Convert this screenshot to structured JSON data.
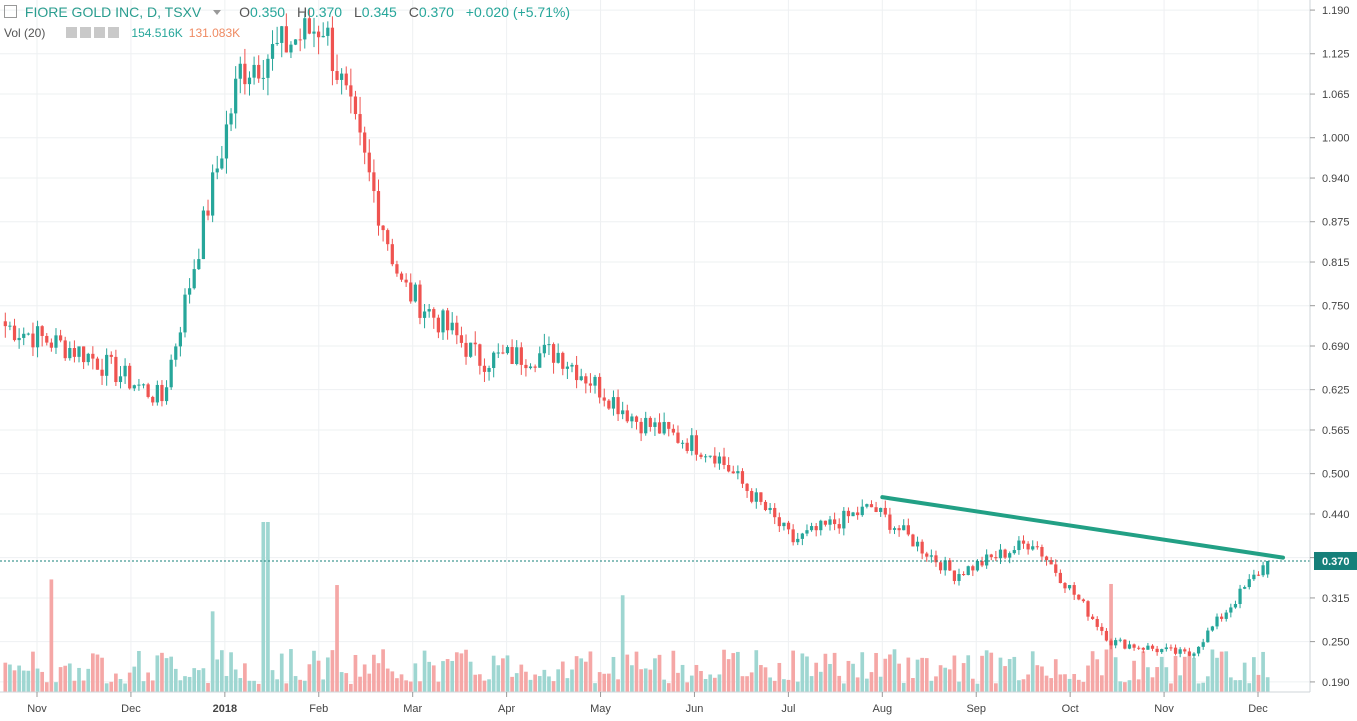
{
  "legend": {
    "symbol": "FIORE GOLD INC, D, TSXV",
    "open_label": "O",
    "open": "0.350",
    "high_label": "H",
    "high": "0.370",
    "low_label": "L",
    "low": "0.345",
    "close_label": "C",
    "close": "0.370",
    "change": "+0.020 (+5.71%)"
  },
  "volume": {
    "label": "Vol (20)",
    "value": "154.516K",
    "ma_value": "131.083K"
  },
  "colors": {
    "up": "#26a69a",
    "down": "#ef5350",
    "vol_up": "#9ed6d1",
    "vol_down": "#f5a7a6",
    "trendline": "#22a085",
    "price_line": "#16807a"
  },
  "chart_data": {
    "type": "candlestick",
    "x_labels": [
      "Nov",
      "Dec",
      "2018",
      "Feb",
      "Mar",
      "Apr",
      "May",
      "Jun",
      "Jul",
      "Aug",
      "Sep",
      "Oct",
      "Nov",
      "Dec"
    ],
    "y_ticks": [
      "0.190",
      "0.250",
      "0.315",
      "0.375",
      "0.440",
      "0.500",
      "0.565",
      "0.625",
      "0.690",
      "0.750",
      "0.815",
      "0.875",
      "0.940",
      "1.000",
      "1.065",
      "1.125",
      "1.190"
    ],
    "ylim": [
      0.175,
      1.205
    ],
    "last_price": "0.370",
    "approx_close_path": [
      {
        "month": "Nov",
        "close": 0.72
      },
      {
        "month": "Dec",
        "close": 0.68
      },
      {
        "month": "Dec-late",
        "close": 0.61
      },
      {
        "month": "2018",
        "close": 1.1
      },
      {
        "month": "2018-peak",
        "close": 1.17
      },
      {
        "month": "Feb",
        "close": 0.78
      },
      {
        "month": "Mar",
        "close": 0.67
      },
      {
        "month": "Apr",
        "close": 0.68
      },
      {
        "month": "May",
        "close": 0.58
      },
      {
        "month": "Jun",
        "close": 0.53
      },
      {
        "month": "Jul",
        "close": 0.4
      },
      {
        "month": "Aug",
        "close": 0.45
      },
      {
        "month": "Sep",
        "close": 0.35
      },
      {
        "month": "Oct",
        "close": 0.4
      },
      {
        "month": "Nov",
        "close": 0.25
      },
      {
        "month": "Nov-late",
        "close": 0.23
      },
      {
        "month": "Dec",
        "close": 0.37
      }
    ],
    "trendline": [
      {
        "date": "Aug-start",
        "price": 0.465
      },
      {
        "date": "Dec-mid",
        "price": 0.375
      }
    ],
    "grid": true
  }
}
